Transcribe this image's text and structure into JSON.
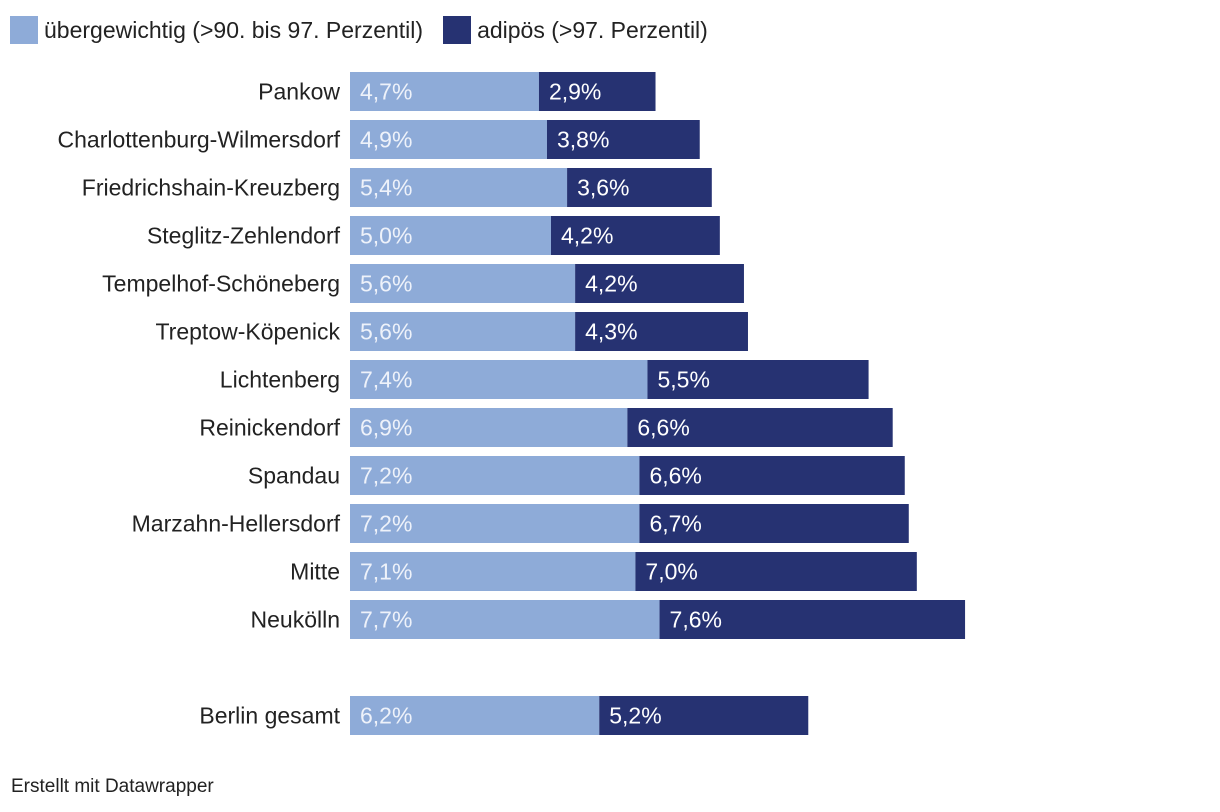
{
  "legend": {
    "items": [
      {
        "label": "übergewichtig (>90. bis 97. Perzentil)",
        "color": "#8eabd8"
      },
      {
        "label": "adipös (>97. Perzentil)",
        "color": "#263272"
      }
    ]
  },
  "chart_data": {
    "type": "bar",
    "orientation": "horizontal",
    "stacked": true,
    "title": "",
    "xlabel": "",
    "ylabel": "",
    "xlim": [
      0,
      15.5
    ],
    "grid": false,
    "legend_position": "top-left",
    "value_format": "comma-decimal-percent",
    "categories": [
      "Pankow",
      "Charlottenburg-Wilmersdorf",
      "Friedrichshain-Kreuzberg",
      "Steglitz-Zehlendorf",
      "Tempelhof-Schöneberg",
      "Treptow-Köpenick",
      "Lichtenberg",
      "Reinickendorf",
      "Spandau",
      "Marzahn-Hellersdorf",
      "Mitte",
      "Neukölln",
      "Berlin gesamt"
    ],
    "series": [
      {
        "name": "übergewichtig (>90. bis 97. Perzentil)",
        "color": "#8eabd8",
        "label_color": "#eef2fa",
        "values": [
          4.7,
          4.9,
          5.4,
          5.0,
          5.6,
          5.6,
          7.4,
          6.9,
          7.2,
          7.2,
          7.1,
          7.7,
          6.2
        ]
      },
      {
        "name": "adipös (>97. Perzentil)",
        "color": "#263272",
        "label_color": "#ffffff",
        "values": [
          2.9,
          3.8,
          3.6,
          4.2,
          4.2,
          4.3,
          5.5,
          6.6,
          6.6,
          6.7,
          7.0,
          7.6,
          5.2
        ]
      }
    ]
  },
  "footer": {
    "credit": "Erstellt mit Datawrapper"
  }
}
